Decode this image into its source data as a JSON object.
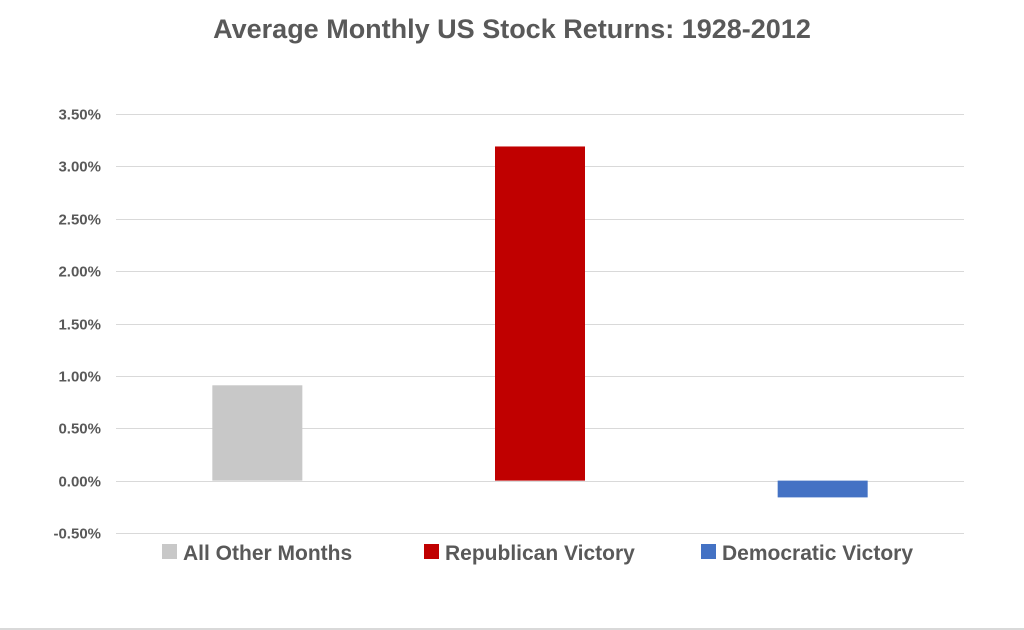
{
  "chart_data": {
    "type": "bar",
    "title": "Average Monthly US Stock Returns: 1928-2012",
    "xlabel": "",
    "ylabel": "",
    "categories": [
      "All Other Months",
      "Republican Victory",
      "Democratic Victory"
    ],
    "values": [
      0.0091,
      0.0319,
      -0.0016
    ],
    "colors": [
      "#c8c8c8",
      "#c00000",
      "#4472c4"
    ],
    "ylim": [
      -0.005,
      0.035
    ],
    "yticks": [
      -0.005,
      0.0,
      0.005,
      0.01,
      0.015,
      0.02,
      0.025,
      0.03,
      0.035
    ],
    "ytick_labels": [
      "-0.50%",
      "0.00%",
      "0.50%",
      "1.00%",
      "1.50%",
      "2.00%",
      "2.50%",
      "3.00%",
      "3.50%"
    ],
    "grid": true,
    "legend_position": "bottom"
  }
}
